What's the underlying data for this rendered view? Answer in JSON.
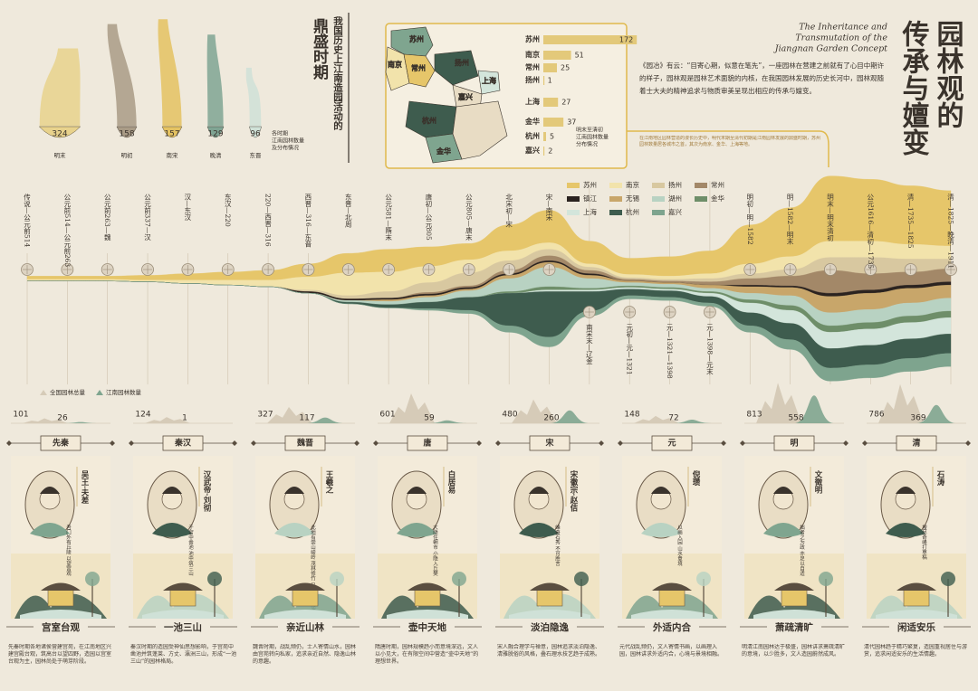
{
  "title": [
    "园林观的",
    "传承与嬗变"
  ],
  "english_title": [
    "The Inheritance and",
    "Transmutation of the",
    "Jiangnan Garden Concept"
  ],
  "intro": "《园冶》有云：“目寄心期，似意在笔先”，一座园林在营建之前就有了心目中期许的样子，园林观是园林艺术面貌的内核，在我国园林发展的历史长河中，园林观随着士大夫的精神追求与物质审美呈现出相应的传承与嬗变。",
  "intro_note": "在江南地区园林营造的漫长历史中，明代末期至清代初期是江南园林发展的鼎盛时期，苏州园林数量居各城市之首，其次为南京、金华、上海等地。",
  "peak": {
    "heading": "鼎盛时期",
    "subheading": "我国历史上江南造园活动的"
  },
  "chart_data": [
    {
      "type": "funnel",
      "note": [
        "各时期",
        "江南园林数量",
        "及分布情况"
      ],
      "categories": [
        "明末",
        "明初",
        "南宋",
        "晚清",
        "东晋"
      ],
      "values": [
        324,
        158,
        157,
        129,
        96
      ],
      "colors": [
        "#e8d28c",
        "#a99b86",
        "#e4c262",
        "#7fa493",
        "#cfe1d7"
      ]
    },
    {
      "type": "bar",
      "orientation": "horizontal",
      "note": [
        "明末至清初",
        "江南园林数量",
        "分布情况"
      ],
      "categories": [
        "苏州",
        "南京",
        "常州",
        "扬州",
        "上海",
        "金华",
        "杭州",
        "嘉兴"
      ],
      "values": [
        172,
        51,
        25,
        1,
        27,
        37,
        5,
        2
      ],
      "color": "#e3c97a"
    },
    {
      "type": "stream",
      "x": [
        "传说—公元前514",
        "公元前514—公元前263",
        "公元前263—魏",
        "公元前337—汉",
        "汉—东汉",
        "东汉—220",
        "220—西晋—316",
        "西晋—316—东晋",
        "东晋—北周",
        "公元581—隋末",
        "唐初—公元805",
        "公元805—唐末",
        "北宋初—宋",
        "宋—南宋",
        "南宋末—辽金",
        "元初—元—1321",
        "元—1321—1398",
        "元—1398—元末",
        "明初—明—1582",
        "明—1582—明末",
        "明末—明末清初",
        "公元1616—清初—1735",
        "清—1735—1825",
        "清—1825—晚清—1911"
      ],
      "series": [
        {
          "name": "苏州",
          "color": "#e6c66a",
          "values": [
            2,
            2,
            2,
            3,
            4,
            5,
            6,
            8,
            12,
            14,
            12,
            10,
            16,
            20,
            14,
            10,
            12,
            14,
            24,
            30,
            40,
            38,
            36,
            34
          ]
        },
        {
          "name": "南京",
          "color": "#f2e3ab",
          "values": [
            1,
            1,
            1,
            1,
            2,
            3,
            4,
            8,
            14,
            12,
            10,
            8,
            6,
            4,
            2,
            2,
            2,
            3,
            6,
            8,
            10,
            10,
            9,
            8
          ]
        },
        {
          "name": "扬州",
          "color": "#d8c8a0",
          "values": [
            0,
            0,
            0,
            0,
            0,
            0,
            0,
            1,
            2,
            4,
            6,
            8,
            6,
            4,
            2,
            1,
            1,
            2,
            3,
            4,
            8,
            10,
            8,
            6
          ]
        },
        {
          "name": "常州",
          "color": "#a38868",
          "values": [
            0,
            0,
            0,
            0,
            0,
            0,
            0,
            0,
            0,
            0,
            1,
            1,
            2,
            3,
            2,
            1,
            1,
            2,
            4,
            6,
            14,
            10,
            8,
            8
          ]
        },
        {
          "name": "镇江",
          "color": "#2b2320",
          "values": [
            0,
            0,
            0,
            0,
            0,
            0,
            0,
            1,
            1,
            1,
            1,
            1,
            1,
            1,
            1,
            0,
            0,
            0,
            1,
            1,
            2,
            2,
            2,
            2
          ]
        },
        {
          "name": "无锡",
          "color": "#c8a66a",
          "values": [
            0,
            0,
            0,
            0,
            0,
            0,
            0,
            0,
            0,
            1,
            1,
            1,
            2,
            3,
            2,
            1,
            1,
            2,
            4,
            5,
            10,
            10,
            9,
            8
          ]
        },
        {
          "name": "湖州",
          "color": "#b8d2c2",
          "values": [
            0,
            0,
            0,
            0,
            0,
            0,
            0,
            0,
            1,
            2,
            3,
            4,
            8,
            12,
            6,
            2,
            2,
            2,
            4,
            6,
            8,
            8,
            8,
            8
          ]
        },
        {
          "name": "金华",
          "color": "#6e8e69",
          "values": [
            0,
            0,
            0,
            0,
            0,
            0,
            0,
            0,
            0,
            0,
            0,
            0,
            1,
            2,
            1,
            1,
            1,
            1,
            2,
            3,
            4,
            4,
            4,
            4
          ]
        },
        {
          "name": "上海",
          "color": "#d3e5db",
          "values": [
            0,
            0,
            0,
            0,
            0,
            0,
            0,
            0,
            0,
            0,
            0,
            0,
            0,
            1,
            1,
            1,
            1,
            2,
            6,
            8,
            10,
            10,
            10,
            10
          ]
        },
        {
          "name": "杭州",
          "color": "#3e5c4e",
          "values": [
            0,
            0,
            0,
            0,
            0,
            0,
            0,
            0,
            1,
            2,
            4,
            8,
            20,
            28,
            12,
            4,
            4,
            4,
            8,
            10,
            12,
            12,
            12,
            12
          ]
        },
        {
          "name": "嘉兴",
          "color": "#7ea48e",
          "values": [
            0,
            0,
            0,
            0,
            0,
            0,
            0,
            0,
            0,
            0,
            1,
            2,
            4,
            6,
            3,
            2,
            2,
            2,
            4,
            6,
            8,
            8,
            8,
            8
          ]
        }
      ]
    },
    {
      "type": "mountain",
      "categories": [
        "先秦",
        "秦汉",
        "魏晋",
        "唐",
        "宋",
        "元",
        "明",
        "清"
      ],
      "series": [
        {
          "name": "全国园林总量",
          "color": "#d6cbb8",
          "values": [
            101,
            124,
            327,
            601,
            480,
            148,
            813,
            786
          ]
        },
        {
          "name": "江南园林数量",
          "color": "#7fa58f",
          "values": [
            26,
            1,
            117,
            59,
            260,
            72,
            558,
            369
          ]
        }
      ]
    }
  ],
  "cards": [
    {
      "person": "吴王·夫差",
      "quote": "吾门外有丘陵 以望宫观",
      "theme": "宫室台观",
      "description": "先秦时期各地诸侯营建宫苑，在江南地区兴建宫殿台观，筑高台以望四野，造园以宫室台观为主，园林尚处于萌芽阶段。"
    },
    {
      "person": "汉武帝·刘彻",
      "quote": "于宫中凿池 池中筑三山",
      "theme": "一池三山",
      "description": "秦汉时期的造园受神仙思想影响，于宫苑中凿池并筑蓬莱、方丈、瀛洲三山，形成“一池三山”的园林格局。"
    },
    {
      "person": "王羲之",
      "quote": "此地有崇山峻岭 茂林修竹 又有清流激湍",
      "theme": "亲近山林",
      "description": "魏晋时期，战乱频仍，士人寄情山水，园林由宫苑转向私家，追求亲近自然、隐逸山林的意趣。"
    },
    {
      "person": "白居易",
      "quote": "大隐住朝市 小隐入丘樊",
      "theme": "壶中天地",
      "description": "隋唐时期，园林规模趋小而意境深远，文人以小见大，在有限空间中营造“壶中天地”的理想世界。"
    },
    {
      "person": "宋徽宗·赵佶",
      "quote": "峰奇石秀 不可胜言",
      "theme": "淡泊隐逸",
      "description": "宋人融合理学与禅意，园林追求淡泊隐逸、清雅脱俗的风格，叠石理水技艺趋于成熟。"
    },
    {
      "person": "倪瓒",
      "quote": "以画入园 山水意境",
      "theme": "外适内合",
      "description": "元代战乱频仍，文人寄情书画，以画理入园，园林讲求外适内合，心境与景境相融。"
    },
    {
      "person": "文徵明",
      "quote": "拙者之为政 亦足以自适",
      "theme": "萧疏清旷",
      "description": "明清江南园林达于极盛，园林讲求萧疏清旷的意境，以少胜多，文人造园蔚然成风。"
    },
    {
      "person": "石涛",
      "quote": "搜尽奇峰打草稿",
      "theme": "闲适安乐",
      "description": "清代园林趋于精巧繁复，造园重视居住与游赏，追求闲适安乐的生活情趣。"
    }
  ]
}
